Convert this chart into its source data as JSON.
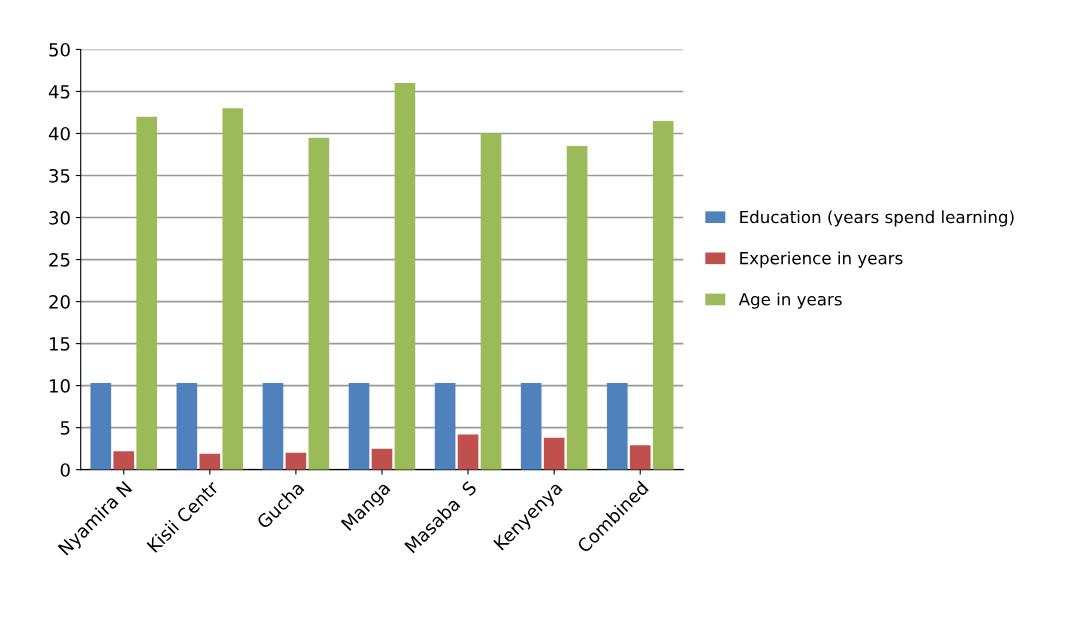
{
  "chart_data": {
    "type": "bar",
    "categories": [
      "Nyamira N",
      "Kisii Centr",
      "Gucha",
      "Manga",
      "Masaba  S",
      "Kenyenya",
      "Combined"
    ],
    "series": [
      {
        "name": "Education (years spend learning)",
        "color": "#4f81bd",
        "values": [
          10.3,
          10.3,
          10.3,
          10.3,
          10.3,
          10.3,
          10.3
        ]
      },
      {
        "name": "Experience in years",
        "color": "#c0504d",
        "values": [
          2.2,
          1.9,
          2.0,
          2.5,
          4.2,
          3.8,
          2.9
        ]
      },
      {
        "name": "Age in years",
        "color": "#9bbb59",
        "values": [
          42,
          43,
          39.5,
          46,
          40,
          38.5,
          41.5
        ]
      }
    ],
    "ylim": [
      0,
      50
    ],
    "yticks": [
      0,
      5,
      10,
      15,
      20,
      25,
      30,
      35,
      40,
      45,
      50
    ],
    "grid": "y",
    "legend": "right"
  }
}
